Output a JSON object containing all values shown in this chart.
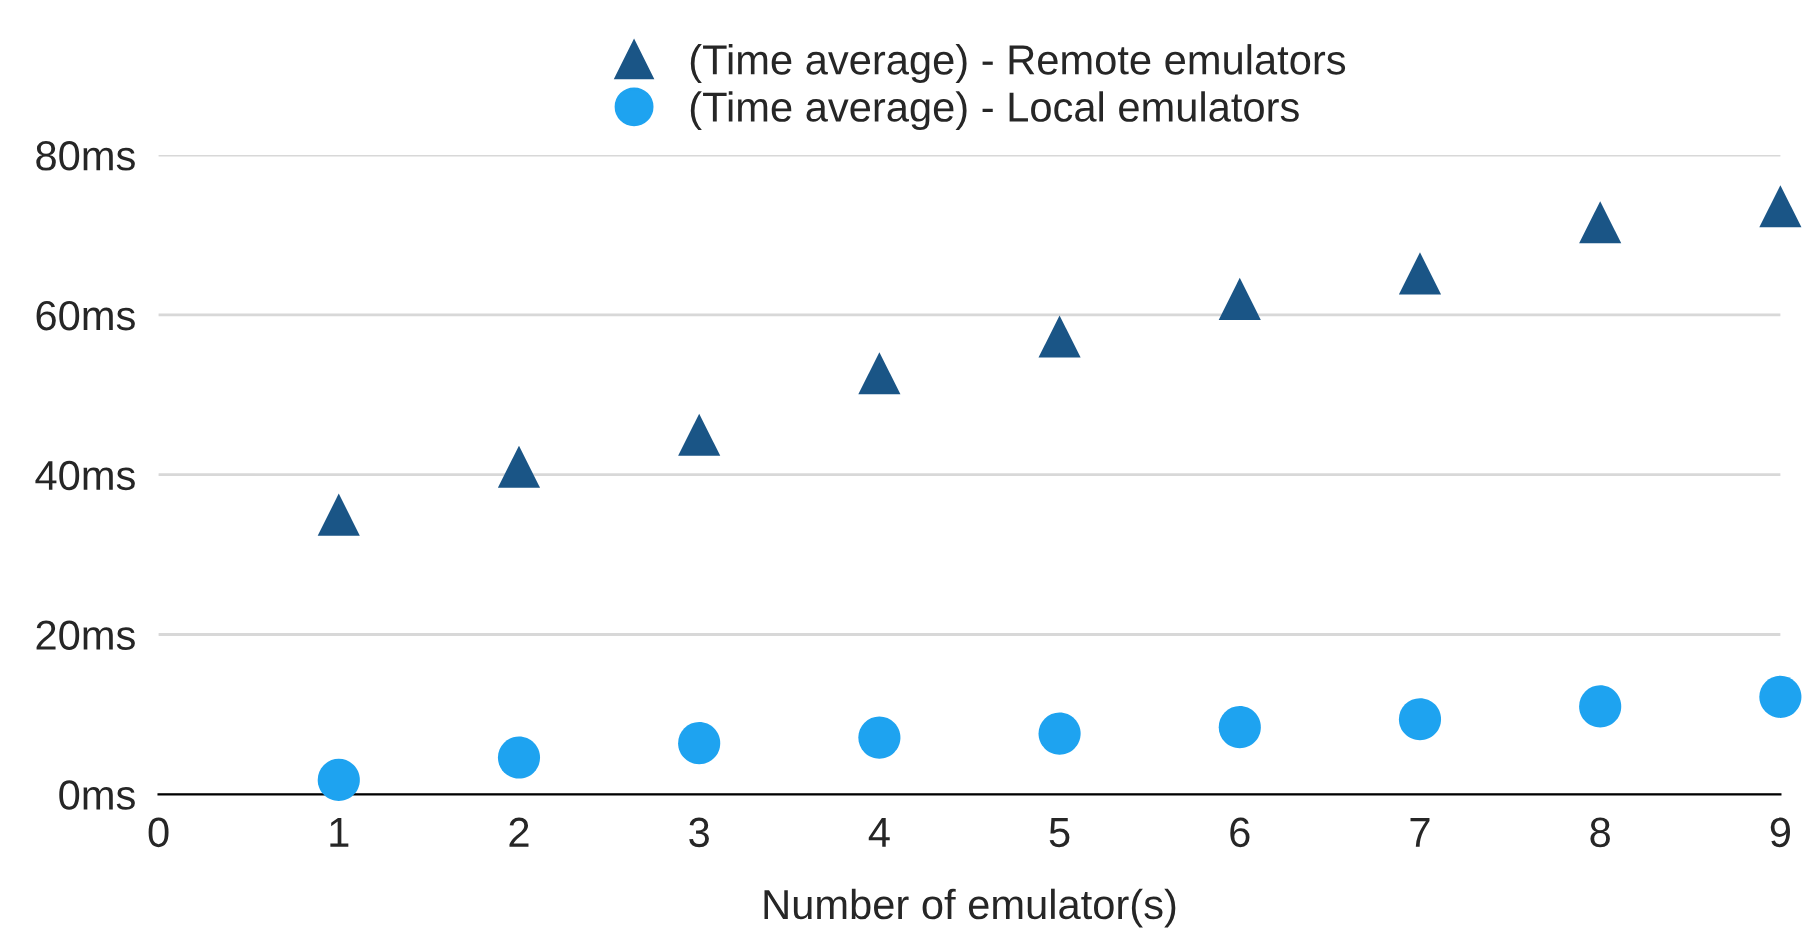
{
  "chart_data": {
    "type": "scatter",
    "xlabel": "Number of emulator(s)",
    "x": [
      1,
      2,
      3,
      4,
      5,
      6,
      7,
      8,
      9
    ],
    "series": [
      {
        "name": "(Time average) - Remote emulators",
        "color": "#1a5586",
        "marker": "triangle",
        "values": [
          35,
          41,
          45,
          52.7,
          57.3,
          62,
          65.2,
          71.6,
          73.6
        ]
      },
      {
        "name": "(Time average) - Local emulators",
        "color": "#1ea3f0",
        "marker": "circle",
        "values": [
          1.8,
          4.6,
          6.4,
          7.1,
          7.6,
          8.4,
          9.4,
          11,
          12.2
        ]
      }
    ],
    "xlim": [
      0,
      9
    ],
    "xticks": [
      0,
      1,
      2,
      3,
      4,
      5,
      6,
      7,
      8,
      9
    ],
    "ylim": [
      0,
      80
    ],
    "yticks": [
      {
        "value": 0,
        "label": "0ms"
      },
      {
        "value": 20,
        "label": "20ms"
      },
      {
        "value": 40,
        "label": "40ms"
      },
      {
        "value": 60,
        "label": "60ms"
      },
      {
        "value": 80,
        "label": "80ms"
      }
    ],
    "grid": "y",
    "legend": "top"
  }
}
